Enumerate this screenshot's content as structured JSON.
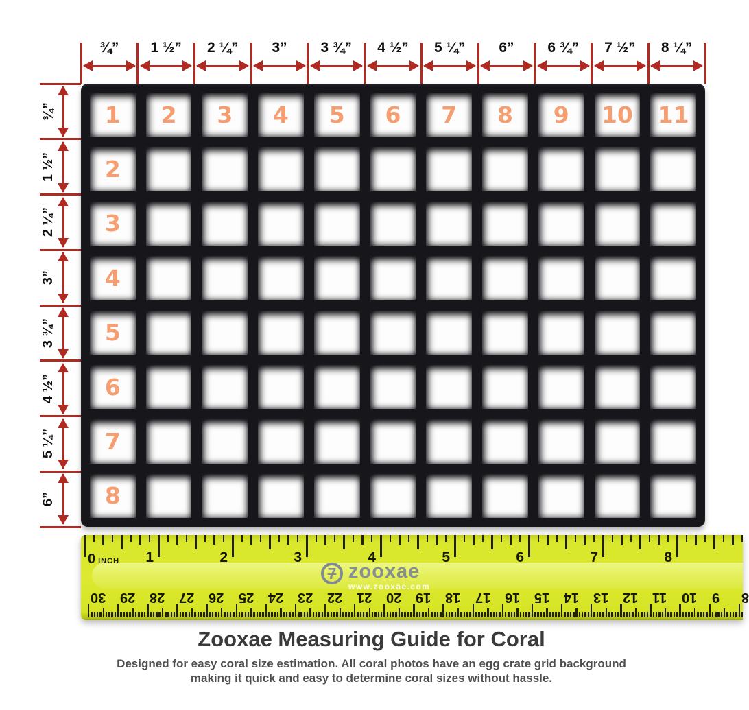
{
  "colors": {
    "dimension_red": "#b02a22",
    "cell_number_orange": "#f59e72",
    "ruler_yellow": "#d9e72b",
    "grid_black": "#17171b",
    "title_gray": "#3a3a3a",
    "subtitle_gray": "#4f4f4f"
  },
  "top_dimensions": {
    "labels": [
      "¾”",
      "1 ½”",
      "2 ¼”",
      "3”",
      "3 ¾”",
      "4 ½”",
      "5 ¼”",
      "6”",
      "6 ¾”",
      "7 ½”",
      "8 ¼”"
    ]
  },
  "left_dimensions": {
    "labels": [
      "¾”",
      "1 ½”",
      "2 ¼”",
      "3”",
      "3 ¾”",
      "4 ½”",
      "5 ¼”",
      "6”"
    ]
  },
  "grid": {
    "columns": 11,
    "rows": 8,
    "top_row_numbers": [
      "1",
      "2",
      "3",
      "4",
      "5",
      "6",
      "7",
      "8",
      "9",
      "10",
      "11"
    ],
    "first_column_numbers": [
      "2",
      "3",
      "4",
      "5",
      "6",
      "7",
      "8"
    ]
  },
  "ruler": {
    "inch_scale": {
      "zero_digit": "0",
      "zero_unit": "INCH",
      "numbers": [
        "1",
        "2",
        "3",
        "4",
        "5",
        "6",
        "7",
        "8"
      ]
    },
    "cm_scale": {
      "numbers": [
        "30",
        "29",
        "28",
        "27",
        "26",
        "25",
        "24",
        "23",
        "22",
        "21",
        "20",
        "19",
        "18",
        "17",
        "16",
        "15",
        "14",
        "13",
        "12",
        "11",
        "10",
        "9",
        "8"
      ]
    },
    "logo": {
      "symbol": "7",
      "brand": "zooxae",
      "url": "www.zooxae.com"
    }
  },
  "footer": {
    "title": "Zooxae Measuring Guide for Coral",
    "subtitle_line1": "Designed for easy coral size estimation. All coral photos have an egg crate grid background",
    "subtitle_line2": "making it quick and easy to determine coral sizes without hassle."
  }
}
